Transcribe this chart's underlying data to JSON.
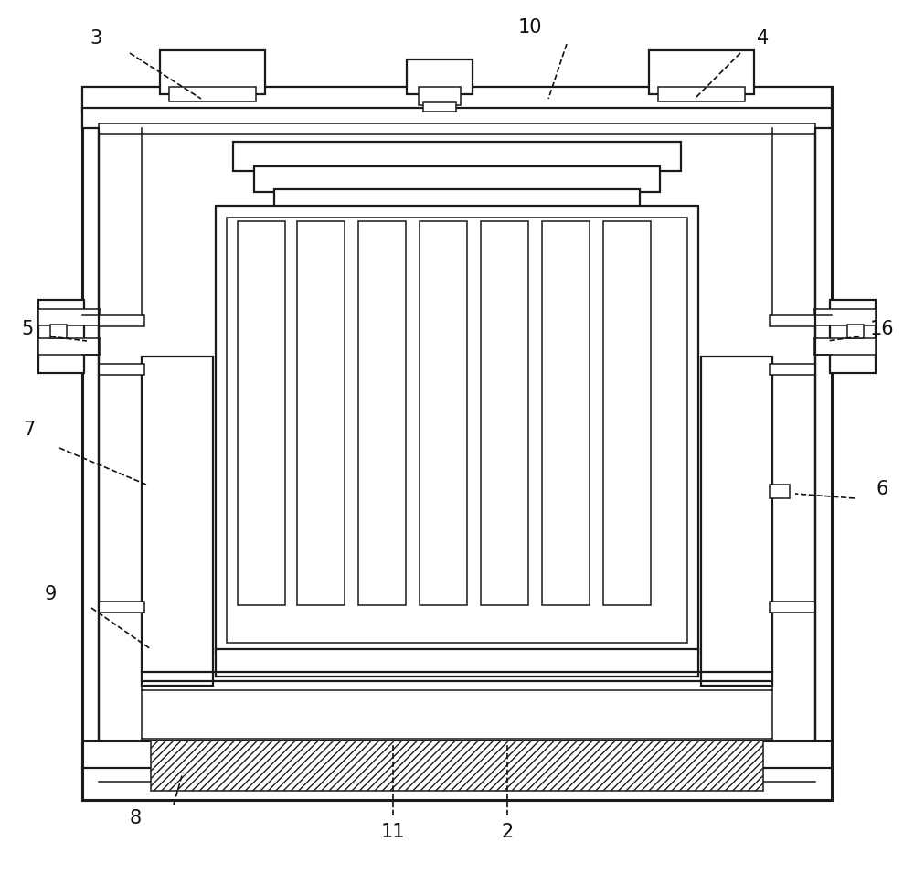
{
  "bg_color": "#ffffff",
  "line_color": "#1a1a1a",
  "lw_outer": 2.2,
  "lw_mid": 1.6,
  "lw_thin": 1.1,
  "label_fontsize": 15,
  "label_color": "#111111"
}
